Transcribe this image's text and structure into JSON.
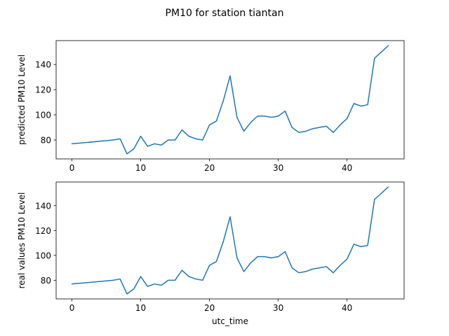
{
  "figure": {
    "suptitle": "PM10 for station tiantan",
    "colors": {
      "line": "#1f77b4",
      "axes": "#000000",
      "background": "#ffffff"
    }
  },
  "chart_data": [
    {
      "type": "line",
      "ylabel": "predicted PM10 Level",
      "xlabel": "",
      "xlim": [
        -2.3,
        48.3
      ],
      "ylim": [
        65,
        159
      ],
      "xticks": [
        0,
        10,
        20,
        30,
        40
      ],
      "yticks": [
        80,
        100,
        120,
        140
      ],
      "grid": false,
      "series": [
        {
          "x": [
            0,
            6,
            7,
            8,
            9,
            10,
            11,
            12,
            13,
            14,
            15,
            16,
            17,
            18,
            19,
            20,
            21,
            22,
            23,
            24,
            25,
            26,
            27,
            28,
            29,
            30,
            31,
            32,
            33,
            34,
            35,
            36,
            37,
            38,
            39,
            40,
            41,
            42,
            43,
            44,
            46
          ],
          "y": [
            77,
            80,
            81,
            69,
            73,
            83,
            75,
            77,
            76,
            80,
            80,
            88,
            83,
            81,
            80,
            92,
            95,
            111,
            131,
            98,
            87,
            94,
            99,
            99,
            98,
            99,
            103,
            90,
            86,
            87,
            89,
            90,
            91,
            86,
            92,
            97,
            109,
            107,
            108,
            145,
            155
          ]
        }
      ]
    },
    {
      "type": "line",
      "ylabel": "real values PM10 Level",
      "xlabel": "utc_time",
      "xlim": [
        -2.3,
        48.3
      ],
      "ylim": [
        65,
        159
      ],
      "xticks": [
        0,
        10,
        20,
        30,
        40
      ],
      "yticks": [
        80,
        100,
        120,
        140
      ],
      "grid": false,
      "series": [
        {
          "x": [
            0,
            6,
            7,
            8,
            9,
            10,
            11,
            12,
            13,
            14,
            15,
            16,
            17,
            18,
            19,
            20,
            21,
            22,
            23,
            24,
            25,
            26,
            27,
            28,
            29,
            30,
            31,
            32,
            33,
            34,
            35,
            36,
            37,
            38,
            39,
            40,
            41,
            42,
            43,
            44,
            46
          ],
          "y": [
            77,
            80,
            81,
            69,
            73,
            83,
            75,
            77,
            76,
            80,
            80,
            88,
            83,
            81,
            80,
            92,
            95,
            111,
            131,
            98,
            87,
            94,
            99,
            99,
            98,
            99,
            103,
            90,
            86,
            87,
            89,
            90,
            91,
            86,
            92,
            97,
            109,
            107,
            108,
            145,
            155
          ]
        }
      ]
    }
  ]
}
